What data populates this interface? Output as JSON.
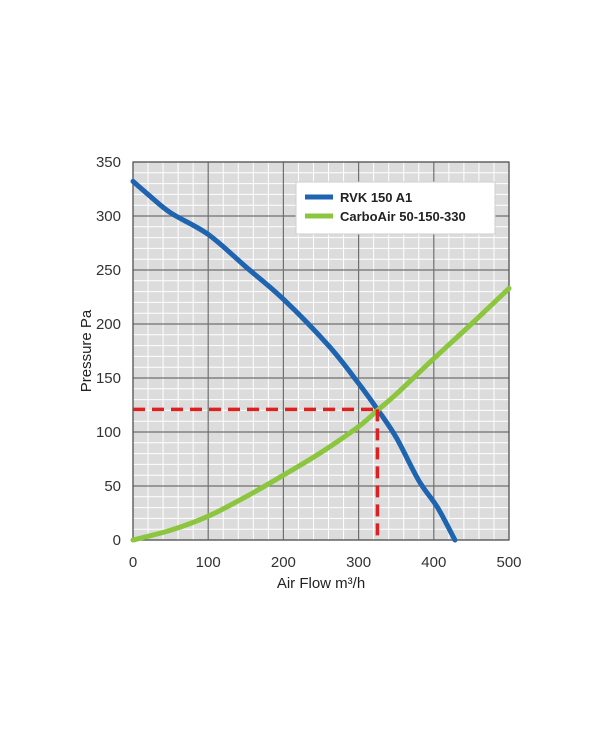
{
  "chart_data": {
    "type": "line",
    "xlabel": "Air Flow m³/h",
    "ylabel": "Pressure Pa",
    "xlim": [
      0,
      500
    ],
    "ylim": [
      0,
      350
    ],
    "x_ticks": [
      0,
      100,
      200,
      300,
      400,
      500
    ],
    "y_ticks": [
      0,
      50,
      100,
      150,
      200,
      250,
      300,
      350
    ],
    "grid": true,
    "minor_grid": true,
    "legend_position": "top-right",
    "series": [
      {
        "name": "RVK 150 A1",
        "color": "#1f64b0",
        "x": [
          0,
          20,
          50,
          100,
          150,
          200,
          260,
          300,
          325,
          350,
          380,
          405,
          428
        ],
        "y": [
          332,
          320,
          303,
          283,
          253,
          223,
          180,
          145,
          121,
          95,
          55,
          30,
          0
        ]
      },
      {
        "name": "CarboAir 50-150-330",
        "color": "#8cc63f",
        "x": [
          0,
          50,
          100,
          150,
          200,
          250,
          300,
          325,
          350,
          400,
          450,
          500
        ],
        "y": [
          0,
          9,
          22,
          40,
          60,
          81,
          105,
          120,
          135,
          168,
          200,
          233
        ]
      }
    ],
    "annotations": {
      "operating_point": {
        "x": 325,
        "y": 121,
        "color": "#e02020",
        "style": "dashed"
      }
    }
  }
}
